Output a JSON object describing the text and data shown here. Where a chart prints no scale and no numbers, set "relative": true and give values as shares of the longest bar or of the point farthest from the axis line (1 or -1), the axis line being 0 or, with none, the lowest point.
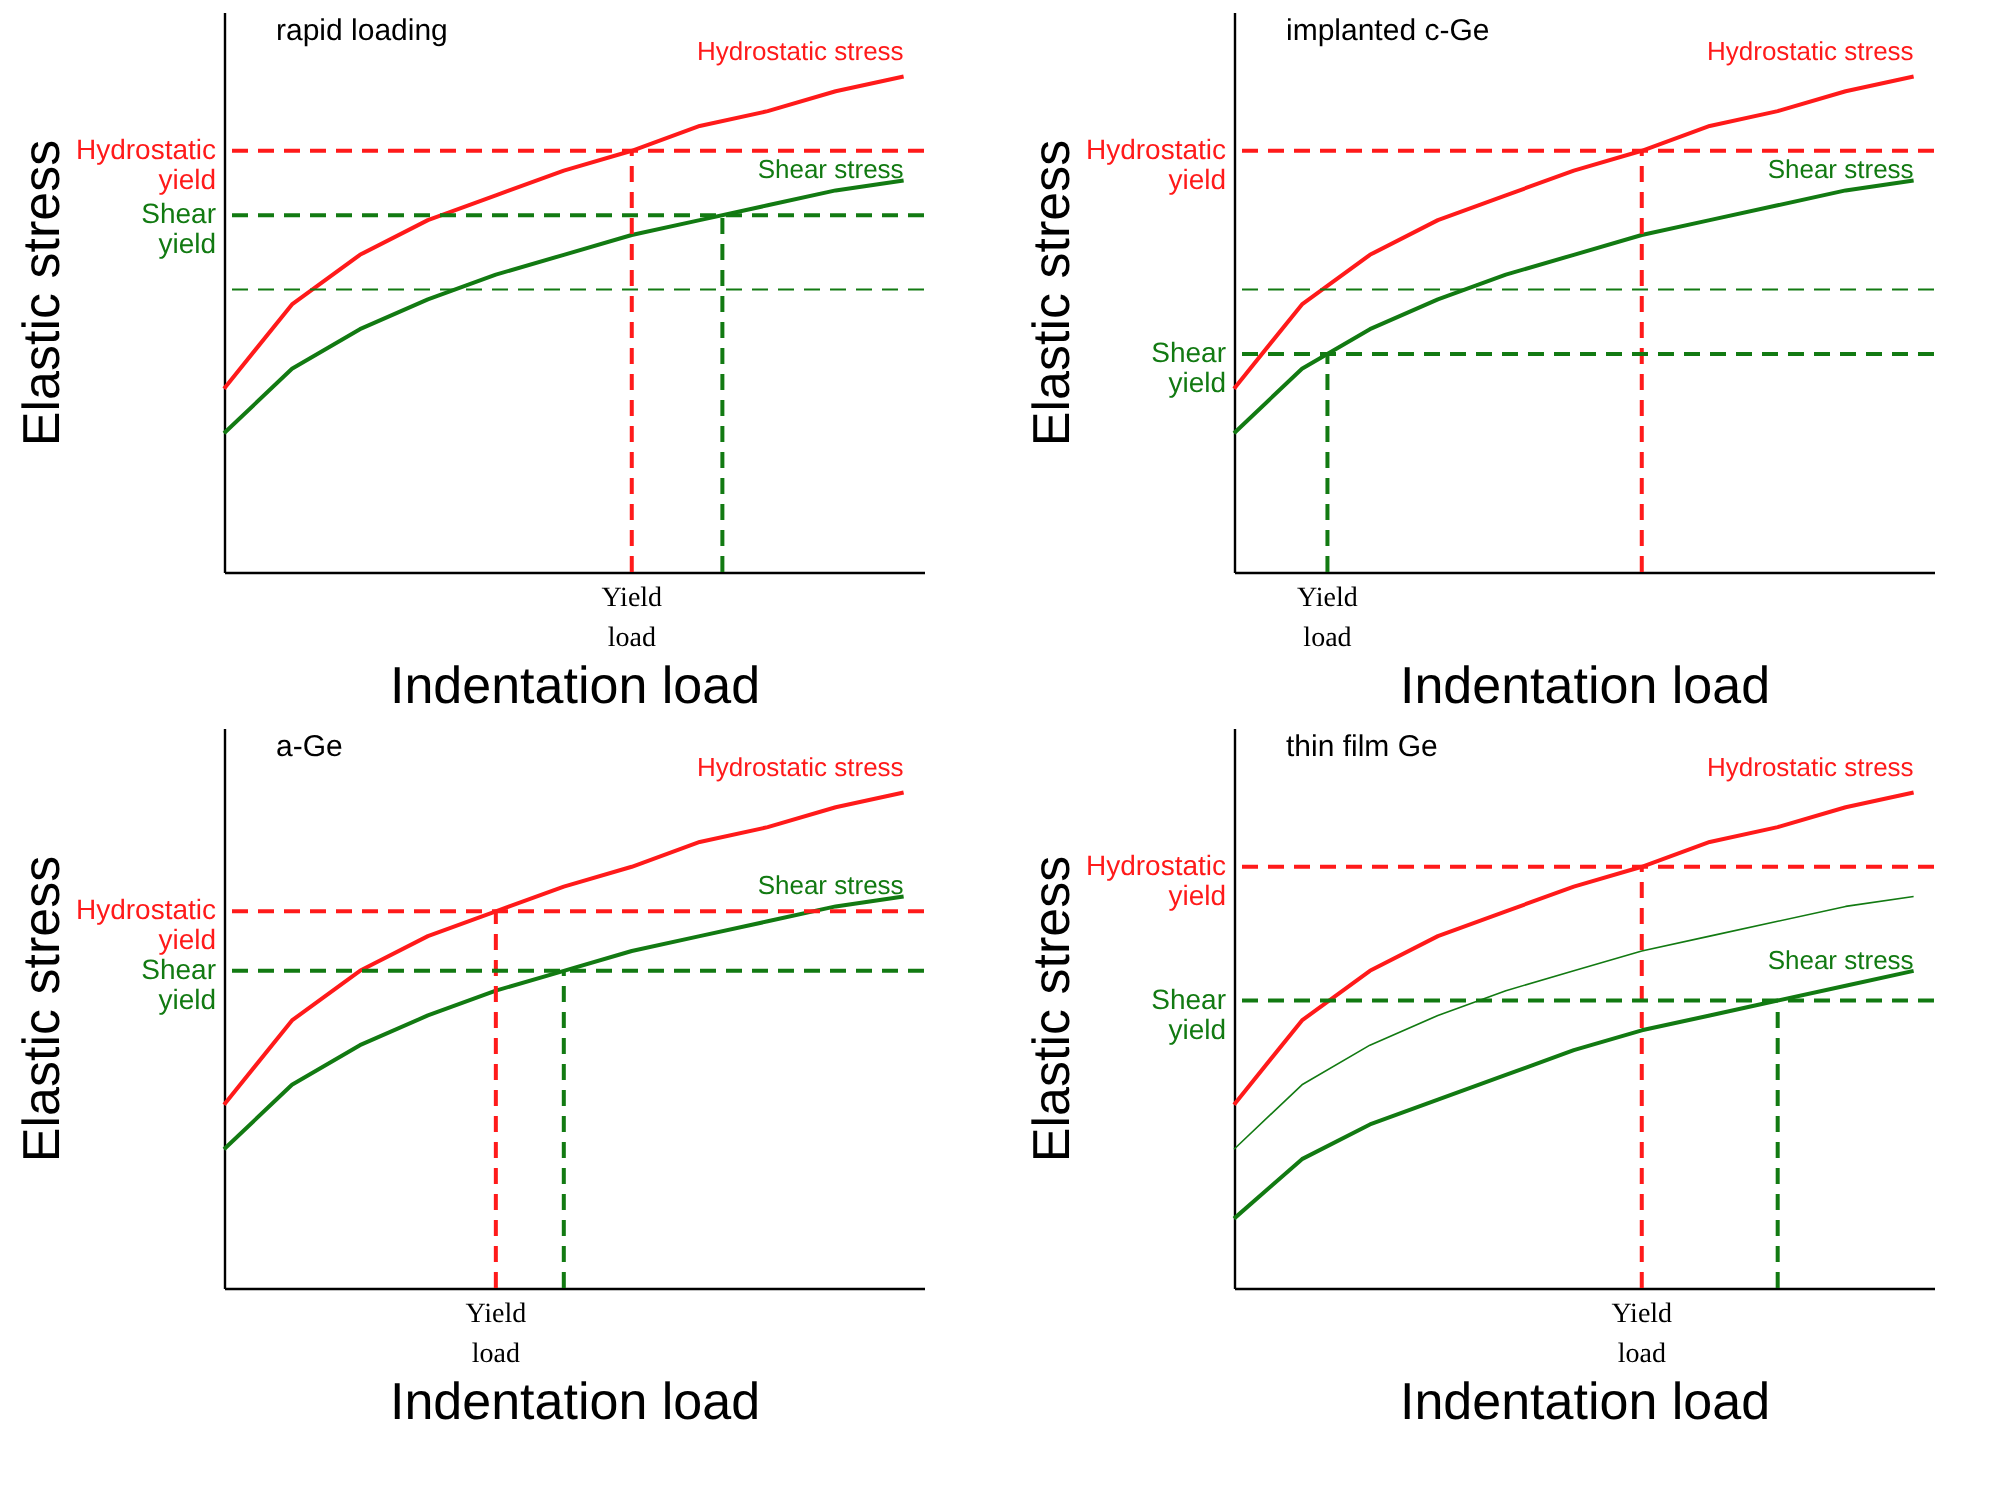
{
  "chart_data": [
    {
      "type": "line",
      "title": "rapid loading",
      "xlabel": "Indentation load",
      "ylabel": "Elastic stress",
      "relative": true,
      "line_style": "solid",
      "categories": [
        null,
        null,
        null,
        null,
        null,
        null,
        null,
        null,
        null,
        null,
        null
      ],
      "series": [
        {
          "name": "Hydrostatic stress",
          "color": "#ff1a1a",
          "values": [
            0.37,
            0.54,
            0.64,
            0.71,
            0.76,
            0.81,
            0.85,
            0.9,
            0.93,
            0.97,
            1
          ]
        },
        {
          "name": "Shear stress",
          "color": "#127a12",
          "values": [
            0.28,
            0.41,
            0.49,
            0.55,
            0.6,
            0.64,
            0.68,
            0.71,
            0.74,
            0.77,
            0.79
          ]
        }
      ],
      "ref_lines": [
        {
          "axis": "y",
          "value": 0.85,
          "label": "Hydrostatic yield",
          "color": "#ff1a1a",
          "line_style": "dashed"
        },
        {
          "axis": "y",
          "value": 0.72,
          "label": "Shear yield",
          "color": "#127a12",
          "line_style": "dashed"
        },
        {
          "axis": "y",
          "value": 0.57,
          "color": "#127a12",
          "line_style": "dashed"
        }
      ],
      "annotations": [
        {
          "text": "Yield load",
          "y": 0.85
        }
      ]
    },
    {
      "type": "line",
      "title": "implanted c-Ge",
      "xlabel": "Indentation load",
      "ylabel": "Elastic stress",
      "relative": true,
      "line_style": "solid",
      "categories": [
        null,
        null,
        null,
        null,
        null,
        null,
        null,
        null,
        null,
        null,
        null
      ],
      "series": [
        {
          "name": "Hydrostatic stress",
          "color": "#ff1a1a",
          "values": [
            0.37,
            0.54,
            0.64,
            0.71,
            0.76,
            0.81,
            0.85,
            0.9,
            0.93,
            0.97,
            1
          ]
        },
        {
          "name": "Shear stress",
          "color": "#127a12",
          "values": [
            0.28,
            0.41,
            0.49,
            0.55,
            0.6,
            0.64,
            0.68,
            0.71,
            0.74,
            0.77,
            0.79
          ]
        }
      ],
      "ref_lines": [
        {
          "axis": "y",
          "value": 0.85,
          "label": "Hydrostatic yield",
          "color": "#ff1a1a",
          "line_style": "dashed"
        },
        {
          "axis": "y",
          "value": 0.57,
          "color": "#127a12",
          "line_style": "dashed"
        },
        {
          "axis": "y",
          "value": 0.44,
          "label": "Shear yield",
          "color": "#127a12",
          "line_style": "dashed"
        }
      ],
      "annotations": [
        {
          "text": "Yield load",
          "y": 0.44
        }
      ]
    },
    {
      "type": "line",
      "title": "a-Ge",
      "xlabel": "Indentation load",
      "ylabel": "Elastic stress",
      "relative": true,
      "line_style": "solid",
      "categories": [
        null,
        null,
        null,
        null,
        null,
        null,
        null,
        null,
        null,
        null,
        null
      ],
      "series": [
        {
          "name": "Hydrostatic stress",
          "color": "#ff1a1a",
          "values": [
            0.37,
            0.54,
            0.64,
            0.71,
            0.76,
            0.81,
            0.85,
            0.9,
            0.93,
            0.97,
            1
          ]
        },
        {
          "name": "Shear stress",
          "color": "#127a12",
          "values": [
            0.28,
            0.41,
            0.49,
            0.55,
            0.6,
            0.64,
            0.68,
            0.71,
            0.74,
            0.77,
            0.79
          ]
        }
      ],
      "ref_lines": [
        {
          "axis": "y",
          "value": 0.76,
          "label": "Hydrostatic yield",
          "color": "#ff1a1a",
          "line_style": "dashed"
        },
        {
          "axis": "y",
          "value": 0.64,
          "label": "Shear yield",
          "color": "#127a12",
          "line_style": "dashed"
        }
      ],
      "annotations": [
        {
          "text": "Yield load",
          "y": 0.76
        }
      ]
    },
    {
      "type": "line",
      "title": "thin film Ge",
      "xlabel": "Indentation load",
      "ylabel": "Elastic stress",
      "relative": true,
      "line_style": "solid",
      "categories": [
        null,
        null,
        null,
        null,
        null,
        null,
        null,
        null,
        null,
        null,
        null
      ],
      "series": [
        {
          "name": "Hydrostatic stress",
          "color": "#ff1a1a",
          "values": [
            0.37,
            0.54,
            0.64,
            0.71,
            0.76,
            0.81,
            0.85,
            0.9,
            0.93,
            0.97,
            1
          ]
        },
        {
          "color": "#127a12",
          "values": [
            0.28,
            0.41,
            0.49,
            0.55,
            0.6,
            0.64,
            0.68,
            0.71,
            0.74,
            0.77,
            0.79
          ]
        },
        {
          "name": "Shear stress",
          "color": "#127a12",
          "values": [
            0.14,
            0.26,
            0.33,
            0.38,
            0.43,
            0.48,
            0.52,
            0.55,
            0.58,
            0.61,
            0.64
          ]
        }
      ],
      "ref_lines": [
        {
          "axis": "y",
          "value": 0.85,
          "label": "Hydrostatic yield",
          "color": "#ff1a1a",
          "line_style": "dashed"
        },
        {
          "axis": "y",
          "value": 0.58,
          "label": "Shear yield",
          "color": "#127a12",
          "line_style": "dashed"
        }
      ],
      "annotations": [
        {
          "text": "Yield load",
          "y": 0.85
        }
      ]
    }
  ]
}
